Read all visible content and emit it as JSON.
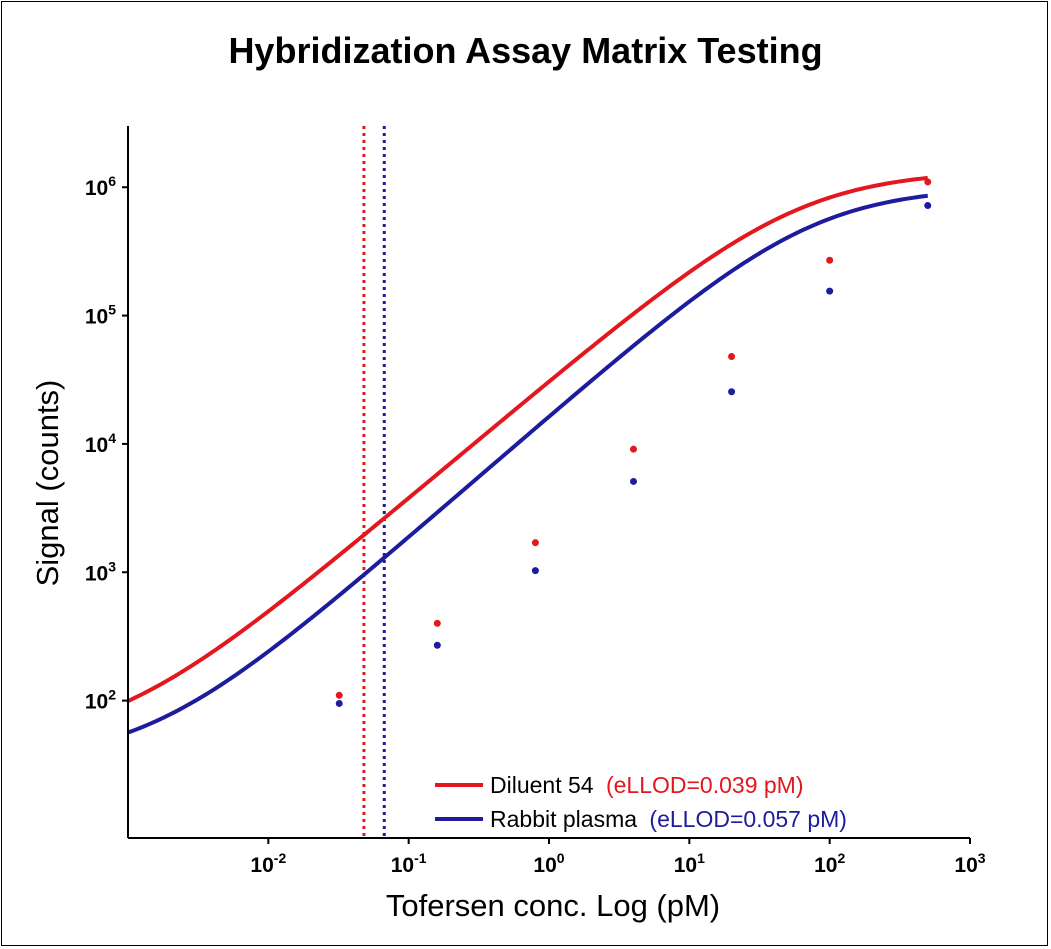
{
  "chart_data": {
    "type": "line",
    "title": "Hybridization Assay Matrix Testing",
    "xlabel": "Tofersen conc. Log (pM)",
    "ylabel": "Signal (counts)",
    "xscale": "log",
    "yscale": "log",
    "xlim": [
      0.001,
      1000
    ],
    "ylim": [
      8.5,
      3000000
    ],
    "x_ticks": [
      {
        "base": "10",
        "exp": "-2",
        "value": 0.01
      },
      {
        "base": "10",
        "exp": "-1",
        "value": 0.1
      },
      {
        "base": "10",
        "exp": "0",
        "value": 1
      },
      {
        "base": "10",
        "exp": "1",
        "value": 10
      },
      {
        "base": "10",
        "exp": "2",
        "value": 100
      },
      {
        "base": "10",
        "exp": "3",
        "value": 1000
      }
    ],
    "y_ticks": [
      {
        "base": "10",
        "exp": "2",
        "value": 100
      },
      {
        "base": "10",
        "exp": "3",
        "value": 1000
      },
      {
        "base": "10",
        "exp": "4",
        "value": 10000
      },
      {
        "base": "10",
        "exp": "5",
        "value": 100000
      },
      {
        "base": "10",
        "exp": "6",
        "value": 1000000
      }
    ],
    "series": [
      {
        "name": "Diluent 54",
        "lod_label": "(eLLOD=0.039 pM)",
        "color": "#e3171e",
        "lod": 0.048,
        "points": [
          [
            0.032,
            110
          ],
          [
            0.16,
            400
          ],
          [
            0.8,
            1700
          ],
          [
            4,
            9100
          ],
          [
            20,
            48000
          ],
          [
            100,
            270000
          ],
          [
            500,
            1100000
          ]
        ],
        "fit": {
          "a": 45,
          "d": 1350000,
          "c": 60,
          "b": 0.92
        }
      },
      {
        "name": "Rabbit plasma",
        "lod_label": "(eLLOD=0.057 pM)",
        "color": "#1c1c9c",
        "lod": 0.067,
        "points": [
          [
            0.032,
            95
          ],
          [
            0.16,
            270
          ],
          [
            0.8,
            1030
          ],
          [
            4,
            5100
          ],
          [
            20,
            25500
          ],
          [
            100,
            155000
          ],
          [
            500,
            720000
          ]
        ],
        "fit": {
          "a": 33,
          "d": 1000000,
          "c": 75,
          "b": 0.95
        }
      }
    ],
    "legend_position": "bottom-right"
  }
}
